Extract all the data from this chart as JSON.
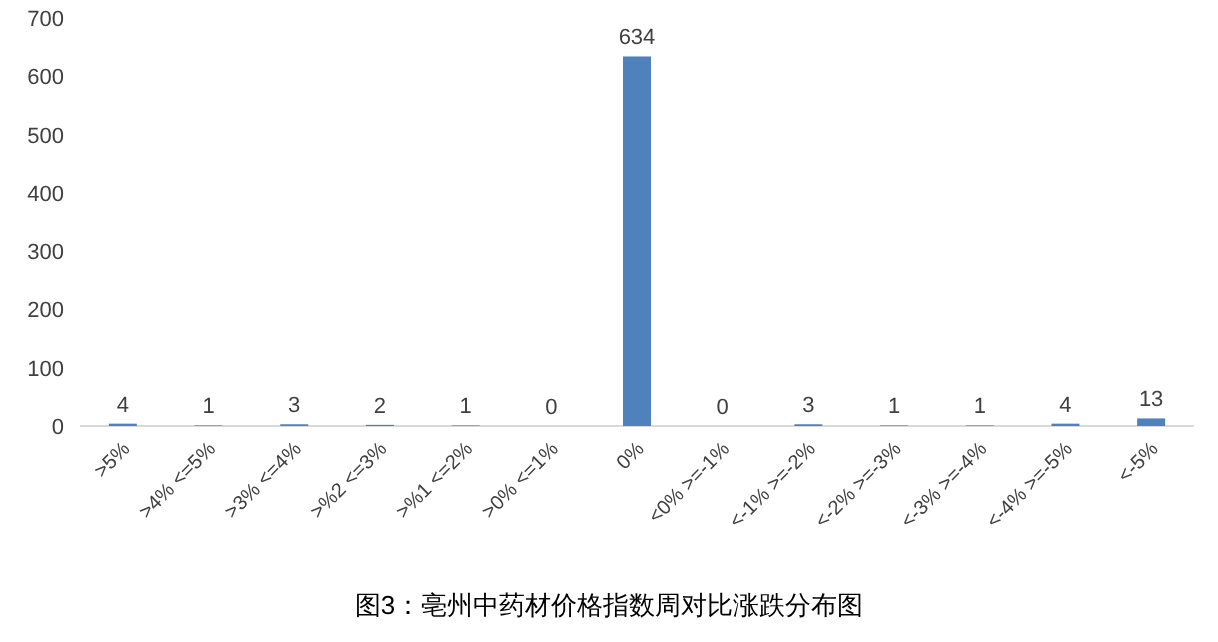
{
  "chart_data": {
    "type": "bar",
    "title": "图3：亳州中药材价格指数周对比涨跌分布图",
    "categories": [
      ">5%",
      ">4% <=5%",
      ">3% <=4%",
      ">%2 <=3%",
      ">%1 <=2%",
      ">0% <=1%",
      "0%",
      "<0% >=-1%",
      "<-1% >=-2%",
      "<-2% >=-3%",
      "<-3% >=-4%",
      "<-4% >=-5%",
      "<-5%"
    ],
    "values": [
      4,
      1,
      3,
      2,
      1,
      0,
      634,
      0,
      3,
      1,
      1,
      4,
      13
    ],
    "color": "#4f81bd",
    "ylim": [
      0,
      700
    ],
    "yticks": [
      0,
      100,
      200,
      300,
      400,
      500,
      600,
      700
    ],
    "data_labels": true,
    "grid": false
  }
}
